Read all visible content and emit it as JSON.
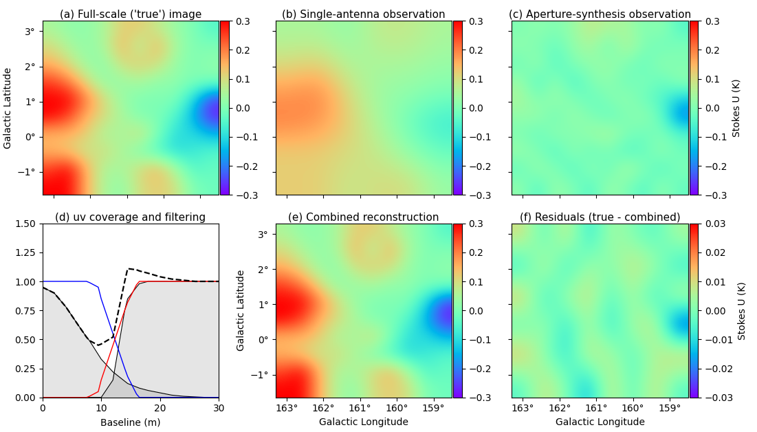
{
  "chart_data": [
    {
      "type": "heatmap",
      "title": "(a) Full-scale ('true') image",
      "ylabel": "Galactic Latitude",
      "xlim": [
        163.3,
        158.5
      ],
      "ylim": [
        -1.65,
        3.3
      ],
      "xticks": [
        {
          "value": 163,
          "label": "163°"
        },
        {
          "value": 162,
          "label": "162°"
        },
        {
          "value": 161,
          "label": "161°"
        },
        {
          "value": 160,
          "label": "160°"
        },
        {
          "value": 159,
          "label": "159°"
        }
      ],
      "yticks": [
        {
          "value": -1,
          "label": "−1°"
        },
        {
          "value": 0,
          "label": "0°"
        },
        {
          "value": 1,
          "label": "1°"
        },
        {
          "value": 2,
          "label": "2°"
        },
        {
          "value": 3,
          "label": "3°"
        }
      ],
      "tick_labels": "y",
      "color": "rainbow",
      "cells": [
        [
          0.05,
          0.02,
          0.02,
          0.05,
          0.12,
          0.12,
          0.08,
          0.03,
          0.0,
          -0.05
        ],
        [
          0.1,
          0.05,
          0.02,
          0.05,
          0.15,
          0.05,
          0.15,
          0.05,
          0.0,
          0.0
        ],
        [
          0.15,
          0.1,
          0.03,
          0.02,
          0.1,
          0.12,
          0.1,
          0.03,
          0.0,
          0.02
        ],
        [
          0.25,
          0.2,
          0.1,
          0.02,
          0.03,
          0.05,
          0.02,
          0.02,
          0.0,
          0.0
        ],
        [
          0.3,
          0.3,
          0.2,
          0.1,
          0.03,
          0.0,
          0.0,
          0.0,
          -0.1,
          -0.25
        ],
        [
          0.3,
          0.25,
          0.15,
          0.1,
          0.05,
          0.0,
          0.0,
          -0.05,
          -0.15,
          -0.28
        ],
        [
          0.15,
          0.15,
          0.12,
          0.05,
          0.05,
          0.1,
          0.0,
          -0.1,
          -0.1,
          -0.15
        ],
        [
          0.15,
          0.12,
          0.08,
          0.1,
          0.05,
          0.0,
          -0.05,
          -0.1,
          -0.08,
          -0.05
        ],
        [
          0.25,
          0.3,
          0.15,
          0.05,
          0.05,
          0.1,
          0.15,
          0.05,
          -0.05,
          -0.03
        ],
        [
          0.3,
          0.3,
          0.15,
          0.05,
          0.02,
          0.1,
          0.12,
          0.1,
          0.0,
          -0.02
        ]
      ],
      "colorbar": {
        "range": [
          -0.3,
          0.3
        ],
        "ticks": [
          {
            "value": -0.3,
            "label": "−0.3"
          },
          {
            "value": -0.2,
            "label": "−0.2"
          },
          {
            "value": -0.1,
            "label": "−0.1"
          },
          {
            "value": 0.0,
            "label": "0.0"
          },
          {
            "value": 0.1,
            "label": "0.1"
          },
          {
            "value": 0.2,
            "label": "0.2"
          },
          {
            "value": 0.3,
            "label": "0.3"
          }
        ]
      }
    },
    {
      "type": "heatmap",
      "title": "(b) Single-antenna observation",
      "xlim": [
        163.3,
        158.5
      ],
      "ylim": [
        -1.65,
        3.3
      ],
      "xticks": [
        163,
        162,
        161,
        160,
        159
      ],
      "yticks": [
        -1,
        0,
        1,
        2,
        3
      ],
      "tick_labels": false,
      "color": "rainbow",
      "cells": [
        [
          0.05,
          0.05,
          0.02,
          0.08,
          0.08,
          0.05
        ],
        [
          0.1,
          0.12,
          0.05,
          0.05,
          0.05,
          0.03
        ],
        [
          0.18,
          0.2,
          0.1,
          0.03,
          0.02,
          0.0
        ],
        [
          0.2,
          0.18,
          0.12,
          0.05,
          -0.02,
          -0.08
        ],
        [
          0.12,
          0.12,
          0.1,
          0.08,
          0.02,
          -0.03
        ],
        [
          0.12,
          0.12,
          0.08,
          0.1,
          0.1,
          0.03
        ]
      ],
      "colorbar": {
        "range": [
          -0.3,
          0.3
        ],
        "ticks": [
          {
            "value": -0.3,
            "label": "−0.3"
          },
          {
            "value": -0.2,
            "label": "−0.2"
          },
          {
            "value": -0.1,
            "label": "−0.1"
          },
          {
            "value": 0.0,
            "label": "0.0"
          },
          {
            "value": 0.1,
            "label": "0.1"
          },
          {
            "value": 0.2,
            "label": "0.2"
          },
          {
            "value": 0.3,
            "label": "0.3"
          }
        ]
      }
    },
    {
      "type": "heatmap",
      "title": "(c) Aperture-synthesis observation",
      "xlim": [
        163.3,
        158.5
      ],
      "ylim": [
        -1.65,
        3.3
      ],
      "xticks": [
        163,
        162,
        161,
        160,
        159
      ],
      "yticks": [
        -1,
        0,
        1,
        2,
        3
      ],
      "tick_labels": false,
      "color": "rainbow",
      "cells": [
        [
          0.0,
          0.02,
          0.0,
          0.03,
          0.08,
          0.05,
          0.05,
          0.0,
          0.02,
          -0.05
        ],
        [
          0.02,
          0.0,
          -0.03,
          0.02,
          0.05,
          -0.02,
          0.06,
          0.0,
          -0.02,
          0.0
        ],
        [
          -0.02,
          0.03,
          -0.05,
          0.0,
          0.02,
          0.03,
          0.0,
          -0.03,
          0.02,
          0.0
        ],
        [
          0.03,
          -0.05,
          0.02,
          -0.06,
          0.0,
          0.02,
          -0.02,
          0.0,
          -0.03,
          0.02
        ],
        [
          0.05,
          0.0,
          0.03,
          0.0,
          -0.03,
          0.0,
          0.02,
          -0.02,
          -0.05,
          -0.12
        ],
        [
          0.02,
          0.03,
          -0.02,
          0.03,
          0.0,
          -0.03,
          0.0,
          0.02,
          -0.03,
          -0.2
        ],
        [
          0.0,
          -0.03,
          0.02,
          0.0,
          0.03,
          0.05,
          0.0,
          -0.02,
          0.0,
          -0.05
        ],
        [
          0.03,
          0.0,
          -0.05,
          0.02,
          -0.03,
          0.0,
          -0.05,
          -0.03,
          0.02,
          -0.02
        ],
        [
          -0.03,
          0.03,
          0.0,
          -0.05,
          0.02,
          -0.03,
          0.05,
          0.0,
          -0.05,
          0.0
        ],
        [
          0.02,
          -0.05,
          0.03,
          0.0,
          -0.05,
          0.03,
          0.0,
          -0.05,
          0.02,
          -0.03
        ]
      ],
      "colorbar": {
        "range": [
          -0.3,
          0.3
        ],
        "label": "Stokes U (K)",
        "ticks": [
          {
            "value": -0.3,
            "label": "−0.3"
          },
          {
            "value": -0.2,
            "label": "−0.2"
          },
          {
            "value": -0.1,
            "label": "−0.1"
          },
          {
            "value": 0.0,
            "label": "0.0"
          },
          {
            "value": 0.1,
            "label": "0.1"
          },
          {
            "value": 0.2,
            "label": "0.2"
          },
          {
            "value": 0.3,
            "label": "0.3"
          }
        ]
      }
    },
    {
      "type": "line",
      "title": "(d) uv coverage and filtering",
      "xlabel": "Baseline (m)",
      "xlim": [
        0,
        30
      ],
      "ylim": [
        0,
        1.5
      ],
      "xticks": [
        0,
        10,
        20,
        30
      ],
      "yticks": [
        {
          "value": 0,
          "label": "0.00"
        },
        {
          "value": 0.25,
          "label": "0.25"
        },
        {
          "value": 0.5,
          "label": "0.50"
        },
        {
          "value": 0.75,
          "label": "0.75"
        },
        {
          "value": 1.0,
          "label": "1.00"
        },
        {
          "value": 1.25,
          "label": "1.25"
        },
        {
          "value": 1.5,
          "label": "1.50"
        }
      ],
      "x": [
        0,
        2,
        4,
        6,
        7.5,
        8,
        9.5,
        10,
        12,
        14,
        14.5,
        16,
        16.5,
        18,
        20,
        22,
        24,
        26,
        28,
        30
      ],
      "series": [
        {
          "type": "area",
          "color": "black",
          "line_style": "solid",
          "values": [
            0.95,
            0.9,
            0.78,
            0.63,
            0.52,
            0.49,
            0.37,
            0.33,
            0.22,
            0.14,
            0.12,
            0.09,
            0.08,
            0.06,
            0.04,
            0.02,
            0.01,
            0.005,
            0,
            0
          ]
        },
        {
          "type": "area",
          "color": "black",
          "line_style": "solid",
          "values": [
            0,
            0,
            0,
            0,
            0,
            0,
            0,
            0,
            0.15,
            0.75,
            0.85,
            0.95,
            0.98,
            1,
            1,
            1,
            1,
            1,
            1,
            1
          ]
        },
        {
          "type": "line",
          "color": "blue",
          "line_style": "solid",
          "values": [
            1,
            1,
            1,
            1,
            1,
            0.99,
            0.95,
            0.85,
            0.55,
            0.25,
            0.18,
            0.03,
            0,
            0,
            0,
            0,
            0,
            0,
            0,
            0
          ]
        },
        {
          "type": "line",
          "color": "red",
          "line_style": "solid",
          "values": [
            0,
            0,
            0,
            0,
            0,
            0.01,
            0.05,
            0.15,
            0.45,
            0.75,
            0.82,
            0.97,
            1,
            1,
            1,
            1,
            1,
            1,
            1,
            1
          ]
        },
        {
          "type": "line",
          "color": "black",
          "line_style": "dashed",
          "values": [
            0.95,
            0.9,
            0.78,
            0.63,
            0.52,
            0.49,
            0.45,
            0.46,
            0.52,
            1.0,
            1.11,
            1.1,
            1.09,
            1.07,
            1.04,
            1.02,
            1.01,
            1.0,
            1.0,
            1.0
          ]
        }
      ]
    },
    {
      "type": "heatmap",
      "title": "(e) Combined reconstruction",
      "xlabel": "Galactic Longitude",
      "ylabel": "Galactic Latitude",
      "xlim": [
        163.3,
        158.5
      ],
      "ylim": [
        -1.65,
        3.3
      ],
      "xticks": [
        {
          "value": 163,
          "label": "163°"
        },
        {
          "value": 162,
          "label": "162°"
        },
        {
          "value": 161,
          "label": "161°"
        },
        {
          "value": 160,
          "label": "160°"
        },
        {
          "value": 159,
          "label": "159°"
        }
      ],
      "yticks": [
        {
          "value": -1,
          "label": "−1°"
        },
        {
          "value": 0,
          "label": "0°"
        },
        {
          "value": 1,
          "label": "1°"
        },
        {
          "value": 2,
          "label": "2°"
        },
        {
          "value": 3,
          "label": "3°"
        }
      ],
      "tick_labels": true,
      "color": "rainbow",
      "cells": [
        [
          0.05,
          0.02,
          0.02,
          0.05,
          0.12,
          0.12,
          0.08,
          0.03,
          0.0,
          -0.05
        ],
        [
          0.1,
          0.05,
          0.02,
          0.05,
          0.15,
          0.05,
          0.15,
          0.05,
          0.0,
          0.0
        ],
        [
          0.15,
          0.1,
          0.03,
          0.02,
          0.1,
          0.12,
          0.1,
          0.03,
          0.0,
          0.02
        ],
        [
          0.25,
          0.2,
          0.1,
          0.02,
          0.03,
          0.05,
          0.02,
          0.02,
          0.0,
          0.0
        ],
        [
          0.3,
          0.3,
          0.2,
          0.1,
          0.03,
          0.0,
          0.0,
          0.0,
          -0.1,
          -0.25
        ],
        [
          0.3,
          0.25,
          0.15,
          0.1,
          0.05,
          0.0,
          0.0,
          -0.05,
          -0.15,
          -0.28
        ],
        [
          0.15,
          0.15,
          0.12,
          0.05,
          0.05,
          0.1,
          0.0,
          -0.1,
          -0.1,
          -0.15
        ],
        [
          0.15,
          0.12,
          0.08,
          0.1,
          0.05,
          0.0,
          -0.05,
          -0.1,
          -0.08,
          -0.05
        ],
        [
          0.25,
          0.3,
          0.15,
          0.05,
          0.05,
          0.1,
          0.15,
          0.05,
          -0.05,
          -0.03
        ],
        [
          0.3,
          0.3,
          0.15,
          0.05,
          0.02,
          0.1,
          0.12,
          0.1,
          0.0,
          -0.02
        ]
      ],
      "colorbar": {
        "range": [
          -0.3,
          0.3
        ],
        "ticks": [
          {
            "value": -0.3,
            "label": "−0.3"
          },
          {
            "value": -0.2,
            "label": "−0.2"
          },
          {
            "value": -0.1,
            "label": "−0.1"
          },
          {
            "value": 0.0,
            "label": "0.0"
          },
          {
            "value": 0.1,
            "label": "0.1"
          },
          {
            "value": 0.2,
            "label": "0.2"
          },
          {
            "value": 0.3,
            "label": "0.3"
          }
        ]
      }
    },
    {
      "type": "heatmap",
      "title": "(f) Residuals (true - combined)",
      "xlabel": "Galactic Longitude",
      "xlim": [
        163.3,
        158.5
      ],
      "ylim": [
        -1.65,
        3.3
      ],
      "xticks": [
        {
          "value": 163,
          "label": "163°"
        },
        {
          "value": 162,
          "label": "162°"
        },
        {
          "value": 161,
          "label": "161°"
        },
        {
          "value": 160,
          "label": "160°"
        },
        {
          "value": 159,
          "label": "159°"
        }
      ],
      "yticks": [
        -1,
        0,
        1,
        2,
        3
      ],
      "tick_labels": "x",
      "color": "rainbow",
      "cells": [
        [
          0.01,
          -0.005,
          0.01,
          -0.01,
          0.005,
          0.0,
          -0.005,
          0.005
        ],
        [
          -0.01,
          0.01,
          -0.01,
          0.005,
          0.0,
          0.01,
          0.005,
          -0.01
        ],
        [
          0.015,
          -0.01,
          0.005,
          0.01,
          -0.005,
          0.005,
          -0.01,
          0.01
        ],
        [
          -0.005,
          0.005,
          -0.01,
          0.005,
          -0.01,
          0.005,
          0.01,
          -0.03
        ],
        [
          0.015,
          0.0,
          -0.01,
          0.01,
          0.005,
          -0.005,
          0.005,
          0.015
        ],
        [
          -0.005,
          0.01,
          0.0,
          -0.015,
          0.01,
          -0.005,
          0.01,
          -0.005
        ]
      ],
      "colorbar": {
        "range": [
          -0.03,
          0.03
        ],
        "label": "Stokes U (K)",
        "ticks": [
          {
            "value": -0.03,
            "label": "−0.03"
          },
          {
            "value": -0.02,
            "label": "−0.02"
          },
          {
            "value": -0.01,
            "label": "−0.01"
          },
          {
            "value": 0.0,
            "label": "0.00"
          },
          {
            "value": 0.01,
            "label": "0.01"
          },
          {
            "value": 0.02,
            "label": "0.02"
          },
          {
            "value": 0.03,
            "label": "0.03"
          }
        ]
      }
    }
  ]
}
